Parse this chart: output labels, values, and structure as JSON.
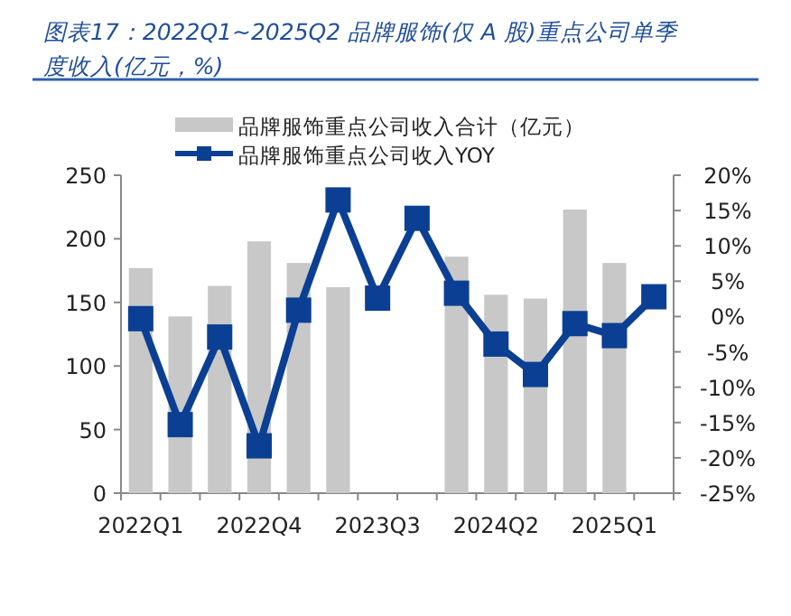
{
  "chart_data": {
    "type": "bar",
    "title": "图表17：2022Q1~2025Q2 品牌服饰(仅 A 股)重点公司单季度收入(亿元，%)",
    "categories": [
      "2022Q1",
      null,
      null,
      "2022Q4",
      null,
      null,
      "2023Q3",
      null,
      null,
      "2024Q2",
      null,
      null,
      "2025Q1",
      null
    ],
    "series": [
      {
        "name": "品牌服饰重点公司收入合计（亿元）",
        "color": "#c8c8c8",
        "values": [
          177,
          139,
          163,
          198,
          181,
          162,
          null,
          null,
          186,
          156,
          153,
          223,
          181,
          null
        ]
      },
      {
        "name": "品牌服饰重点公司收入YOY",
        "type": "line",
        "axis": "y2",
        "marker": "square",
        "color": "#0b3f94",
        "values": [
          -0.3,
          -15.3,
          -2.9,
          -18.3,
          0.9,
          16.5,
          2.6,
          13.9,
          3.3,
          -3.9,
          -8.2,
          -1.0,
          -2.7,
          2.8
        ]
      }
    ],
    "ylim": [
      0,
      250
    ],
    "yticks": [
      0,
      50,
      100,
      150,
      200,
      250
    ],
    "y2lim": [
      -25,
      20
    ],
    "y2ticks": [
      {
        "value": -25,
        "label": "-25%"
      },
      {
        "value": -20,
        "label": "-20%"
      },
      {
        "value": -15,
        "label": "-15%"
      },
      {
        "value": -10,
        "label": "-10%"
      },
      {
        "value": -5,
        "label": "-5%"
      },
      {
        "value": 0,
        "label": "0%"
      },
      {
        "value": 5,
        "label": "5%"
      },
      {
        "value": 10,
        "label": "10%"
      },
      {
        "value": 15,
        "label": "15%"
      },
      {
        "value": 20,
        "label": "20%"
      }
    ],
    "legend": "top",
    "grid": false
  }
}
